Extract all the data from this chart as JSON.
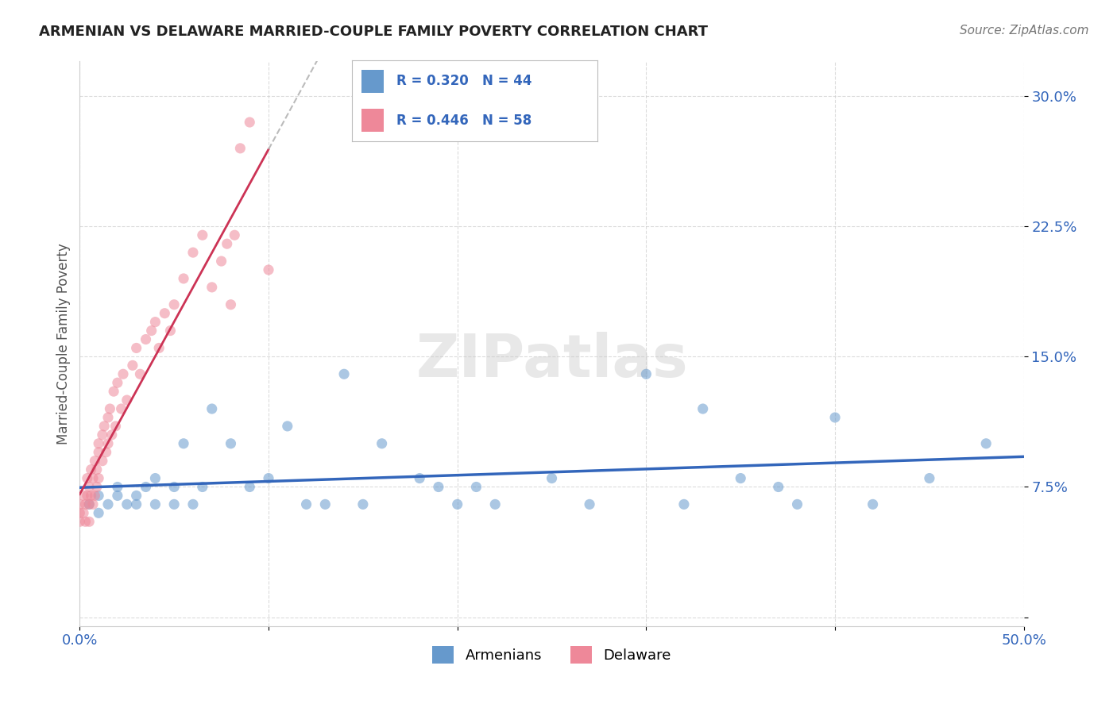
{
  "title": "ARMENIAN VS DELAWARE MARRIED-COUPLE FAMILY POVERTY CORRELATION CHART",
  "source": "Source: ZipAtlas.com",
  "ylabel": "Married-Couple Family Poverty",
  "xlim": [
    0.0,
    0.5
  ],
  "ylim": [
    -0.005,
    0.32
  ],
  "xticks": [
    0.0,
    0.1,
    0.2,
    0.3,
    0.4,
    0.5
  ],
  "xtick_labels": [
    "0.0%",
    "",
    "",
    "",
    "",
    "50.0%"
  ],
  "yticks": [
    0.0,
    0.075,
    0.15,
    0.225,
    0.3
  ],
  "ytick_labels": [
    "",
    "7.5%",
    "15.0%",
    "22.5%",
    "30.0%"
  ],
  "grid_color": "#cccccc",
  "watermark": "ZIPatlas",
  "legend_R1": "R = 0.320",
  "legend_N1": "N = 44",
  "legend_R2": "R = 0.446",
  "legend_N2": "N = 58",
  "legend_color1": "#6699cc",
  "legend_color2": "#ee8899",
  "trendline_color1": "#3366bb",
  "trendline_color2": "#cc3355",
  "armenians_x": [
    0.005,
    0.01,
    0.01,
    0.015,
    0.02,
    0.02,
    0.025,
    0.03,
    0.03,
    0.035,
    0.04,
    0.04,
    0.05,
    0.05,
    0.055,
    0.06,
    0.065,
    0.07,
    0.08,
    0.09,
    0.1,
    0.11,
    0.12,
    0.13,
    0.14,
    0.15,
    0.16,
    0.18,
    0.19,
    0.2,
    0.21,
    0.22,
    0.25,
    0.27,
    0.3,
    0.32,
    0.33,
    0.35,
    0.37,
    0.38,
    0.4,
    0.42,
    0.45,
    0.48
  ],
  "armenians_y": [
    0.065,
    0.07,
    0.06,
    0.065,
    0.07,
    0.075,
    0.065,
    0.07,
    0.065,
    0.075,
    0.065,
    0.08,
    0.075,
    0.065,
    0.1,
    0.065,
    0.075,
    0.12,
    0.1,
    0.075,
    0.08,
    0.11,
    0.065,
    0.065,
    0.14,
    0.065,
    0.1,
    0.08,
    0.075,
    0.065,
    0.075,
    0.065,
    0.08,
    0.065,
    0.14,
    0.065,
    0.12,
    0.08,
    0.075,
    0.065,
    0.115,
    0.065,
    0.08,
    0.1
  ],
  "delaware_x": [
    0.0,
    0.0,
    0.0,
    0.002,
    0.002,
    0.003,
    0.003,
    0.004,
    0.004,
    0.005,
    0.005,
    0.005,
    0.006,
    0.006,
    0.007,
    0.007,
    0.008,
    0.008,
    0.009,
    0.009,
    0.01,
    0.01,
    0.01,
    0.012,
    0.012,
    0.013,
    0.014,
    0.015,
    0.015,
    0.016,
    0.017,
    0.018,
    0.019,
    0.02,
    0.022,
    0.023,
    0.025,
    0.028,
    0.03,
    0.032,
    0.035,
    0.038,
    0.04,
    0.042,
    0.045,
    0.048,
    0.05,
    0.055,
    0.06,
    0.065,
    0.07,
    0.075,
    0.078,
    0.08,
    0.082,
    0.085,
    0.09,
    0.1
  ],
  "delaware_y": [
    0.06,
    0.055,
    0.065,
    0.06,
    0.07,
    0.065,
    0.055,
    0.08,
    0.07,
    0.055,
    0.075,
    0.065,
    0.085,
    0.07,
    0.08,
    0.065,
    0.09,
    0.07,
    0.085,
    0.075,
    0.1,
    0.08,
    0.095,
    0.105,
    0.09,
    0.11,
    0.095,
    0.115,
    0.1,
    0.12,
    0.105,
    0.13,
    0.11,
    0.135,
    0.12,
    0.14,
    0.125,
    0.145,
    0.155,
    0.14,
    0.16,
    0.165,
    0.17,
    0.155,
    0.175,
    0.165,
    0.18,
    0.195,
    0.21,
    0.22,
    0.19,
    0.205,
    0.215,
    0.18,
    0.22,
    0.27,
    0.285,
    0.2
  ],
  "background_color": "#ffffff",
  "title_color": "#222222",
  "axis_label_color": "#555555",
  "tick_label_color": "#3366bb",
  "scatter_alpha": 0.55,
  "scatter_size": 90
}
